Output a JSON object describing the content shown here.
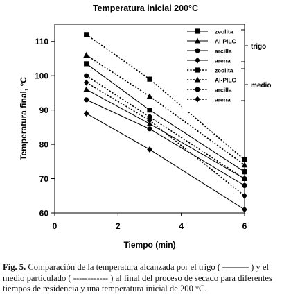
{
  "chart_data": {
    "type": "line",
    "title": "Temperatura inicial 200°C",
    "xlabel": "Tiempo (min)",
    "ylabel": "Temperatura final, °C",
    "xlim": [
      0,
      6
    ],
    "ylim": [
      60,
      115
    ],
    "xticks": [
      "0",
      "2",
      "4",
      "6"
    ],
    "yticks": [
      "60",
      "70",
      "80",
      "90",
      "100",
      "110"
    ],
    "grid": false,
    "legend_position": "top-right",
    "x": [
      1,
      3,
      6
    ],
    "series": [
      {
        "name": "zeolita",
        "group": "trigo",
        "marker": "square",
        "dash": "solid",
        "values": [
          103.5,
          90,
          72
        ]
      },
      {
        "name": "Al-PILC",
        "group": "trigo",
        "marker": "triangle",
        "dash": "solid",
        "values": [
          96,
          86,
          70
        ]
      },
      {
        "name": "arcilla",
        "group": "trigo",
        "marker": "circle",
        "dash": "solid",
        "values": [
          93,
          84.5,
          68
        ]
      },
      {
        "name": "arena",
        "group": "trigo",
        "marker": "diamond",
        "dash": "solid",
        "values": [
          89,
          78.5,
          61
        ]
      },
      {
        "name": "zeolita",
        "group": "medio",
        "marker": "square",
        "dash": "dotted",
        "values": [
          112,
          99,
          75.5
        ]
      },
      {
        "name": "Al-PILC",
        "group": "medio",
        "marker": "triangle",
        "dash": "dotted",
        "values": [
          106,
          94,
          74
        ]
      },
      {
        "name": "arcilla",
        "group": "medio",
        "marker": "circle",
        "dash": "dotted",
        "values": [
          100,
          88,
          70
        ]
      },
      {
        "name": "arena",
        "group": "medio",
        "marker": "diamond",
        "dash": "dotted",
        "values": [
          98,
          87,
          65
        ]
      }
    ],
    "groups": [
      "trigo",
      "medio"
    ]
  },
  "caption": {
    "label": "Fig. 5.",
    "text": " Comparación de la temperatura alcanzada por el trigo ( ——— ) y el medio particulado ( ------------ ) al final del proceso de secado para diferentes tiempos de residencia y una temperatura inicial de 200 °C."
  }
}
